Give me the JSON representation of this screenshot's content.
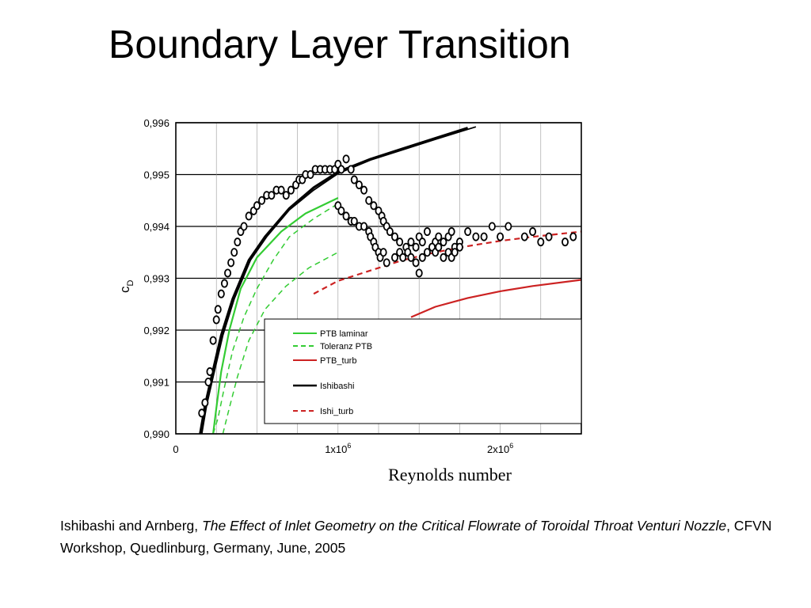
{
  "slide": {
    "title": "Boundary Layer Transition",
    "citation": {
      "prefix": "Ishibashi and Arnberg, ",
      "paper_title": "The Effect of Inlet Geometry on the Critical Flowrate of Toroidal Throat Venturi Nozzle",
      "suffix": ", CFVN Workshop, Quedlinburg, Germany, June, 2005"
    }
  },
  "chart_data": {
    "type": "scatter",
    "title": "",
    "xlabel": "Reynolds number",
    "ylabel_main": "c",
    "ylabel_sub": "D",
    "xlim": [
      0,
      2500000
    ],
    "ylim": [
      0.99,
      0.996
    ],
    "grid": true,
    "legend_position": "bottom-right",
    "x_ticks": [
      {
        "value": 0,
        "label": "0",
        "sup": ""
      },
      {
        "value": 1000000,
        "label": "1x10",
        "sup": "6"
      },
      {
        "value": 2000000,
        "label": "2x10",
        "sup": "6"
      }
    ],
    "y_ticks": [
      {
        "value": 0.99,
        "label": "0,990"
      },
      {
        "value": 0.991,
        "label": "0,991"
      },
      {
        "value": 0.992,
        "label": "0,992"
      },
      {
        "value": 0.993,
        "label": "0,993"
      },
      {
        "value": 0.994,
        "label": "0,994"
      },
      {
        "value": 0.995,
        "label": "0,995"
      },
      {
        "value": 0.996,
        "label": "0,996"
      }
    ],
    "series": [
      {
        "name": "PTB laminar",
        "style": "solid",
        "color": "#33cc33",
        "width": 2.2,
        "x": [
          230000,
          250000,
          280000,
          330000,
          400000,
          500000,
          650000,
          800000,
          1000000
        ],
        "y": [
          0.99,
          0.9905,
          0.9912,
          0.992,
          0.9928,
          0.9934,
          0.9939,
          0.99425,
          0.99455
        ]
      },
      {
        "name": "Toleranz PTB",
        "style": "dashed",
        "color": "#33cc33",
        "width": 1.5,
        "x": [
          230000,
          260000,
          300000,
          350000,
          420000,
          500000,
          600000,
          700000,
          850000,
          980000
        ],
        "y": [
          0.99,
          0.9903,
          0.9909,
          0.9916,
          0.99225,
          0.9928,
          0.99335,
          0.9938,
          0.99415,
          0.9944
        ]
      },
      {
        "name": "Toleranz PTB",
        "style": "dashed",
        "color": "#33cc33",
        "width": 1.5,
        "x": [
          290000,
          330000,
          380000,
          450000,
          550000,
          680000,
          820000,
          1000000
        ],
        "y": [
          0.99,
          0.9905,
          0.9911,
          0.9918,
          0.9924,
          0.99285,
          0.9932,
          0.9935
        ]
      },
      {
        "name": "PTB_turb",
        "style": "solid",
        "color": "#cc2222",
        "width": 2.2,
        "x": [
          1450000,
          1600000,
          1800000,
          2000000,
          2200000,
          2500000
        ],
        "y": [
          0.99225,
          0.99245,
          0.99262,
          0.99275,
          0.99285,
          0.99297
        ]
      },
      {
        "name": "Ishibashi",
        "style": "solid",
        "color": "#000000",
        "width": 3,
        "x": [
          150000,
          180000,
          220000,
          280000,
          350000,
          450000,
          550000,
          700000,
          850000,
          1000000,
          1200000,
          1400000,
          1600000,
          1800000
        ],
        "y": [
          0.99,
          0.99055,
          0.9911,
          0.9919,
          0.9926,
          0.99335,
          0.9938,
          0.99435,
          0.99475,
          0.99505,
          0.9953,
          0.9955,
          0.9957,
          0.9959
        ]
      },
      {
        "name": "Ishibashi",
        "style": "solid",
        "color": "#000000",
        "width": 1.8,
        "x": [
          160000,
          190000,
          230000,
          290000,
          360000,
          460000,
          560000,
          700000,
          850000,
          1000000,
          1200000,
          1400000,
          1600000,
          1850000
        ],
        "y": [
          0.99,
          0.99055,
          0.9911,
          0.9919,
          0.9926,
          0.99335,
          0.9938,
          0.99432,
          0.9947,
          0.99502,
          0.99528,
          0.99548,
          0.99568,
          0.99592
        ]
      },
      {
        "name": "Ishi_turb",
        "style": "dashed",
        "color": "#cc2222",
        "width": 2.2,
        "x": [
          850000,
          1000000,
          1200000,
          1400000,
          1600000,
          1800000,
          2000000,
          2200000,
          2500000
        ],
        "y": [
          0.9927,
          0.99295,
          0.99315,
          0.99335,
          0.9935,
          0.99362,
          0.99372,
          0.9938,
          0.9939
        ]
      }
    ],
    "points": {
      "name": "measurements",
      "x": [
        160000,
        180000,
        200000,
        210000,
        230000,
        250000,
        260000,
        280000,
        300000,
        320000,
        340000,
        360000,
        380000,
        400000,
        420000,
        450000,
        480000,
        500000,
        530000,
        560000,
        590000,
        620000,
        650000,
        680000,
        710000,
        740000,
        760000,
        780000,
        800000,
        830000,
        860000,
        890000,
        920000,
        950000,
        980000,
        1000000,
        1020000,
        1050000,
        1080000,
        1100000,
        1130000,
        1160000,
        1190000,
        1220000,
        1250000,
        1270000,
        1280000,
        1300000,
        1320000,
        1350000,
        1380000,
        1420000,
        1450000,
        1480000,
        1500000,
        1520000,
        1550000,
        1580000,
        1600000,
        1620000,
        1650000,
        1680000,
        1700000,
        1720000,
        1750000,
        1800000,
        1850000,
        1900000,
        1950000,
        2000000,
        2050000,
        2150000,
        2200000,
        2250000,
        2300000,
        2400000,
        2450000,
        1000000,
        1020000,
        1050000,
        1080000,
        1100000,
        1130000,
        1160000,
        1190000,
        1200000,
        1220000,
        1230000,
        1250000,
        1260000,
        1280000,
        1300000,
        1350000,
        1380000,
        1400000,
        1430000,
        1450000,
        1480000,
        1500000,
        1520000,
        1550000,
        1580000,
        1600000,
        1620000,
        1650000,
        1680000,
        1700000,
        1720000,
        1750000
      ],
      "y": [
        0.9904,
        0.9906,
        0.991,
        0.9912,
        0.9918,
        0.9922,
        0.9924,
        0.9927,
        0.9929,
        0.9931,
        0.9933,
        0.9935,
        0.9937,
        0.9939,
        0.994,
        0.9942,
        0.9943,
        0.9944,
        0.9945,
        0.9946,
        0.9946,
        0.9947,
        0.9947,
        0.9946,
        0.9947,
        0.9948,
        0.9949,
        0.9949,
        0.995,
        0.995,
        0.9951,
        0.9951,
        0.9951,
        0.9951,
        0.9951,
        0.9952,
        0.9951,
        0.9953,
        0.9951,
        0.9949,
        0.9948,
        0.9947,
        0.9945,
        0.9944,
        0.9943,
        0.9942,
        0.9941,
        0.994,
        0.9939,
        0.9938,
        0.9937,
        0.9936,
        0.9937,
        0.9936,
        0.9938,
        0.9937,
        0.9939,
        0.9936,
        0.9937,
        0.9938,
        0.9937,
        0.9938,
        0.9939,
        0.9936,
        0.9937,
        0.9939,
        0.9938,
        0.9938,
        0.994,
        0.9938,
        0.994,
        0.9938,
        0.9939,
        0.9937,
        0.9938,
        0.9937,
        0.9938,
        0.9944,
        0.9943,
        0.9942,
        0.9941,
        0.9941,
        0.994,
        0.994,
        0.9939,
        0.9938,
        0.9937,
        0.9936,
        0.9935,
        0.9934,
        0.9935,
        0.9933,
        0.9934,
        0.9935,
        0.9934,
        0.9935,
        0.9934,
        0.9933,
        0.9931,
        0.9934,
        0.9935,
        0.9936,
        0.9935,
        0.9936,
        0.9934,
        0.9935,
        0.9934,
        0.9935,
        0.9936
      ]
    }
  }
}
